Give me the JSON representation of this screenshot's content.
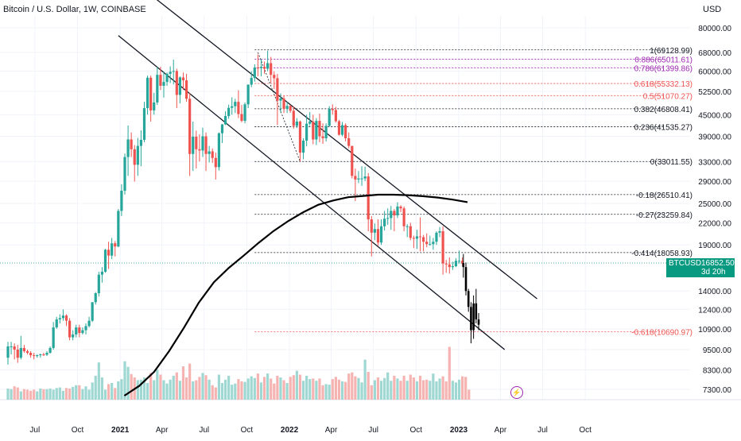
{
  "title": "Bitcoin / U.S. Dollar, 1W, COINBASE",
  "currency": "USD",
  "price_tag": {
    "symbol": "BTCUSD",
    "price": "16852.50",
    "countdown": "3d 20h"
  },
  "icons": {
    "alert": "lightning-icon"
  },
  "colors": {
    "up": "#26a69a",
    "down": "#ef5350",
    "vol_up": "#9fd8d2",
    "vol_down": "#f5b3b1",
    "fib_purple": "#9c27b0",
    "ma_line": "#000000",
    "price_line": "#089981"
  },
  "chart_data": {
    "type": "candlestick",
    "y_scale": "log",
    "ylim": [
      6800,
      85000
    ],
    "y_ticks": [
      "80000.00",
      "68000.00",
      "60000.00",
      "52500.00",
      "45000.00",
      "39000.00",
      "33000.00",
      "29000.00",
      "25000.00",
      "22000.00",
      "19000.00",
      "16852.50",
      "14000.00",
      "12400.00",
      "10900.00",
      "9500.00",
      "8300.00",
      "7300.00"
    ],
    "x_ticks": [
      "Jul",
      "Oct",
      "2021",
      "Apr",
      "Jul",
      "Oct",
      "2022",
      "Apr",
      "Jul",
      "Oct",
      "2023",
      "Apr",
      "Jul",
      "Oct"
    ],
    "start": "2020-05-04",
    "interval_weeks": 1,
    "ohlc": [
      [
        9000,
        10000,
        8600,
        9700
      ],
      [
        9700,
        10000,
        9200,
        9700
      ],
      [
        9700,
        9900,
        8900,
        9500
      ],
      [
        9500,
        9800,
        8700,
        9000
      ],
      [
        9000,
        10400,
        8900,
        9600
      ],
      [
        9600,
        9800,
        9300,
        9400
      ],
      [
        9400,
        9500,
        9200,
        9300
      ],
      [
        9300,
        9400,
        9000,
        9150
      ],
      [
        9150,
        9300,
        8900,
        9100
      ],
      [
        9100,
        9200,
        9000,
        9150
      ],
      [
        9150,
        9250,
        9000,
        9200
      ],
      [
        9200,
        9300,
        9100,
        9180
      ],
      [
        9180,
        9400,
        9100,
        9300
      ],
      [
        9300,
        9700,
        9250,
        9600
      ],
      [
        9600,
        11400,
        9500,
        11000
      ],
      [
        11000,
        11800,
        10900,
        11600
      ],
      [
        11600,
        12000,
        11300,
        11700
      ],
      [
        11700,
        12400,
        11500,
        11900
      ],
      [
        11900,
        12000,
        11100,
        11500
      ],
      [
        11500,
        11700,
        10100,
        10300
      ],
      [
        10300,
        10800,
        10100,
        10500
      ],
      [
        10500,
        11200,
        10300,
        11000
      ],
      [
        11000,
        11200,
        10300,
        10600
      ],
      [
        10600,
        11000,
        10500,
        10800
      ],
      [
        10800,
        11300,
        10500,
        11100
      ],
      [
        11100,
        11800,
        11000,
        11500
      ],
      [
        11500,
        13000,
        11400,
        13000
      ],
      [
        13000,
        13900,
        12800,
        13800
      ],
      [
        13800,
        15900,
        13500,
        15600
      ],
      [
        15600,
        16400,
        14800,
        15900
      ],
      [
        15900,
        18500,
        15800,
        18400
      ],
      [
        18400,
        19400,
        16200,
        17700
      ],
      [
        17700,
        19900,
        17300,
        19200
      ],
      [
        19200,
        19500,
        17600,
        18800
      ],
      [
        18800,
        24100,
        18700,
        23800
      ],
      [
        23800,
        28400,
        23000,
        27200
      ],
      [
        27200,
        34800,
        26500,
        34000
      ],
      [
        34000,
        41900,
        30000,
        38200
      ],
      [
        38200,
        40000,
        34000,
        35800
      ],
      [
        35800,
        36800,
        28900,
        32300
      ],
      [
        32300,
        38600,
        30000,
        36600
      ],
      [
        36600,
        40600,
        32000,
        38100
      ],
      [
        38100,
        49000,
        37500,
        47000
      ],
      [
        47000,
        58300,
        45000,
        57500
      ],
      [
        57500,
        58300,
        43000,
        46300
      ],
      [
        46300,
        52000,
        45000,
        48800
      ],
      [
        48800,
        61800,
        48000,
        58600
      ],
      [
        58600,
        61800,
        53000,
        54500
      ],
      [
        54500,
        60000,
        50400,
        55900
      ],
      [
        55900,
        59500,
        54500,
        59000
      ],
      [
        59000,
        62000,
        55500,
        59800
      ],
      [
        59800,
        64800,
        55000,
        60100
      ],
      [
        60100,
        61000,
        47000,
        51300
      ],
      [
        51300,
        58000,
        48500,
        57600
      ],
      [
        57600,
        59500,
        53000,
        56500
      ],
      [
        56500,
        59000,
        49000,
        50000
      ],
      [
        50000,
        52000,
        30000,
        34700
      ],
      [
        34700,
        43000,
        31000,
        38900
      ],
      [
        38900,
        40500,
        31500,
        35800
      ],
      [
        35800,
        39500,
        33000,
        35500
      ],
      [
        35500,
        41300,
        34000,
        39000
      ],
      [
        39000,
        40000,
        31000,
        34700
      ],
      [
        34700,
        36600,
        32800,
        35300
      ],
      [
        35300,
        36000,
        32700,
        33800
      ],
      [
        33800,
        35000,
        29300,
        31800
      ],
      [
        31800,
        40000,
        31100,
        39800
      ],
      [
        39800,
        42300,
        37300,
        42200
      ],
      [
        42200,
        46000,
        42000,
        44600
      ],
      [
        44600,
        48100,
        43800,
        47100
      ],
      [
        47100,
        50500,
        45000,
        47600
      ],
      [
        47600,
        50000,
        45500,
        49000
      ],
      [
        49000,
        52900,
        44000,
        45200
      ],
      [
        45200,
        48000,
        42800,
        43200
      ],
      [
        43200,
        48800,
        42500,
        48200
      ],
      [
        48200,
        55000,
        47000,
        54900
      ],
      [
        54900,
        60000,
        54000,
        57400
      ],
      [
        57400,
        62800,
        56000,
        61500
      ],
      [
        61500,
        67000,
        58000,
        61300
      ],
      [
        61300,
        65000,
        58000,
        61800
      ],
      [
        61800,
        64000,
        59000,
        61000
      ],
      [
        61000,
        68800,
        60000,
        63300
      ],
      [
        63300,
        66000,
        55600,
        58600
      ],
      [
        58600,
        60000,
        53300,
        57300
      ],
      [
        57300,
        59000,
        42000,
        49400
      ],
      [
        49400,
        51800,
        45700,
        50100
      ],
      [
        50100,
        51000,
        45500,
        46800
      ],
      [
        46800,
        49000,
        45500,
        47700
      ],
      [
        47700,
        48000,
        45600,
        46200
      ],
      [
        46200,
        47500,
        41000,
        41800
      ],
      [
        41800,
        44000,
        41200,
        43000
      ],
      [
        43000,
        43300,
        33000,
        35000
      ],
      [
        35000,
        38500,
        33500,
        37900
      ],
      [
        37900,
        45000,
        36500,
        42400
      ],
      [
        42400,
        45800,
        41800,
        43000
      ],
      [
        43000,
        45000,
        37000,
        38200
      ],
      [
        38200,
        44000,
        36800,
        43200
      ],
      [
        43200,
        45300,
        37500,
        39000
      ],
      [
        39000,
        42500,
        37100,
        38500
      ],
      [
        38500,
        42500,
        37700,
        41800
      ],
      [
        41800,
        47600,
        41600,
        46800
      ],
      [
        46800,
        48200,
        45000,
        46400
      ],
      [
        46400,
        47400,
        42700,
        43100
      ],
      [
        43100,
        43500,
        39200,
        39400
      ],
      [
        39400,
        42900,
        39000,
        42000
      ],
      [
        42000,
        42500,
        37700,
        38500
      ],
      [
        38500,
        40000,
        36000,
        36600
      ],
      [
        36600,
        36600,
        29500,
        30000
      ],
      [
        30000,
        31500,
        25400,
        29300
      ],
      [
        29300,
        31000,
        28600,
        29500
      ],
      [
        29500,
        32000,
        28100,
        29500
      ],
      [
        29500,
        31900,
        29000,
        29900
      ],
      [
        29900,
        30600,
        20800,
        22500
      ],
      [
        22500,
        23000,
        17600,
        20600
      ],
      [
        20600,
        21900,
        19600,
        21100
      ],
      [
        21100,
        22500,
        18900,
        19300
      ],
      [
        19300,
        22500,
        19000,
        21500
      ],
      [
        21500,
        23800,
        20900,
        22600
      ],
      [
        22600,
        24200,
        21700,
        22700
      ],
      [
        22700,
        24600,
        21000,
        23800
      ],
      [
        23800,
        24100,
        20800,
        23100
      ],
      [
        23100,
        25200,
        22700,
        24500
      ],
      [
        24500,
        24700,
        23600,
        24200
      ],
      [
        24200,
        24500,
        20800,
        21500
      ],
      [
        21500,
        21800,
        20000,
        21500
      ],
      [
        21500,
        22000,
        19600,
        19900
      ],
      [
        19900,
        20200,
        18600,
        19800
      ],
      [
        19800,
        21000,
        18500,
        20100
      ],
      [
        20100,
        22800,
        18200,
        20000
      ],
      [
        20000,
        20300,
        18200,
        19400
      ],
      [
        19400,
        20500,
        18700,
        19100
      ],
      [
        19100,
        20200,
        18900,
        19100
      ],
      [
        19100,
        19900,
        18400,
        19400
      ],
      [
        19400,
        20800,
        19000,
        20600
      ],
      [
        20600,
        21400,
        20000,
        20800
      ],
      [
        20800,
        21500,
        15600,
        16800
      ],
      [
        16800,
        17200,
        15800,
        16700
      ],
      [
        16700,
        17500,
        15700,
        16400
      ],
      [
        16400,
        17000,
        16100,
        16500
      ],
      [
        16500,
        17400,
        16400,
        17100
      ],
      [
        17100,
        18300,
        16800,
        17100
      ],
      [
        17100,
        17500,
        16500,
        16800
      ]
    ],
    "volume": [
      2.0,
      1.9,
      2.4,
      2.2,
      1.5,
      1.9,
      1.8,
      1.6,
      1.8,
      1.5,
      2.0,
      1.9,
      1.9,
      2.0,
      1.8,
      2.1,
      2.2,
      1.6,
      2.1,
      2.0,
      2.3,
      2.6,
      2.6,
      1.9,
      2.4,
      1.8,
      3.1,
      4.3,
      6.7,
      4.0,
      1.8,
      2.8,
      3.0,
      2.1,
      3.3,
      3.7,
      6.9,
      5.9,
      4.6,
      4.0,
      3.5,
      3.6,
      4.0,
      3.0,
      4.8,
      3.5,
      5.4,
      4.5,
      3.5,
      2.9,
      3.6,
      4.3,
      4.9,
      3.4,
      6.0,
      4.0,
      6.5,
      3.3,
      3.5,
      4.1,
      4.8,
      4.4,
      3.6,
      2.6,
      2.2,
      4.5,
      3.0,
      3.6,
      4.3,
      2.7,
      2.9,
      3.7,
      3.3,
      3.2,
      3.8,
      4.2,
      3.9,
      4.7,
      3.1,
      4.1,
      4.7,
      3.8,
      2.9,
      4.3,
      4.0,
      3.5,
      3.0,
      4.1,
      4.4,
      5.2,
      4.5,
      3.4,
      4.3,
      3.7,
      3.8,
      3.4,
      3.8,
      2.6,
      2.8,
      2.7,
      3.7,
      4.1,
      3.6,
      3.3,
      3.2,
      4.7,
      4.9,
      4.2,
      3.9,
      3.1,
      7.2,
      5.0,
      2.6,
      3.5,
      4.0,
      3.4,
      3.9,
      4.9,
      3.4,
      4.3,
      3.8,
      3.4,
      4.3,
      3.4,
      4.5,
      4.0,
      3.3,
      4.3,
      3.5,
      3.6,
      3.4,
      4.7,
      3.3,
      3.8,
      4.2,
      3.3,
      9.5,
      3.4,
      3.1,
      3.6,
      4.2,
      4.1,
      1.8
    ],
    "moving_average": [
      [
        6930,
        7000
      ],
      [
        7780,
        7470
      ],
      [
        8770,
        8200
      ],
      [
        9760,
        9400
      ],
      [
        10900,
        10990
      ],
      [
        12040,
        12980
      ],
      [
        13140,
        14840
      ],
      [
        14330,
        16320
      ],
      [
        15460,
        17700
      ],
      [
        16600,
        19260
      ],
      [
        17780,
        20830
      ],
      [
        18900,
        22270
      ],
      [
        20080,
        23600
      ],
      [
        21300,
        24780
      ],
      [
        22440,
        25500
      ],
      [
        23700,
        26050
      ],
      [
        24850,
        26270
      ],
      [
        26050,
        26500
      ],
      [
        27200,
        26500
      ],
      [
        28350,
        26410
      ],
      [
        29580,
        26230
      ],
      [
        30760,
        26000
      ],
      [
        31940,
        25650
      ],
      [
        33100,
        25220
      ]
    ],
    "fib_levels": [
      {
        "label": "1(69128.99)",
        "value": 69128.99,
        "color": "#131722"
      },
      {
        "label": "0.886(65011.61)",
        "value": 65011.61,
        "color": "#9c27b0"
      },
      {
        "label": "0.786(61399.86)",
        "value": 61399.86,
        "color": "#9c27b0"
      },
      {
        "label": "0.618(55332.13)",
        "value": 55332.13,
        "color": "#ef5350"
      },
      {
        "label": "0.5(51070.27)",
        "value": 51070.27,
        "color": "#ef5350"
      },
      {
        "label": "0.382(46808.41)",
        "value": 46808.41,
        "color": "#131722"
      },
      {
        "label": "0.236(41535.27)",
        "value": 41535.27,
        "color": "#131722"
      },
      {
        "label": "0(33011.55)",
        "value": 33011.55,
        "color": "#131722"
      },
      {
        "label": "-0.18(26510.41)",
        "value": 26510.41,
        "color": "#131722"
      },
      {
        "label": "-0.27(23259.84)",
        "value": 23259.84,
        "color": "#131722"
      },
      {
        "label": "-0.414(18058.93)",
        "value": 18058.93,
        "color": "#131722"
      },
      {
        "label": "-0.618(10690.97)",
        "value": 10690.97,
        "color": "#ef5350"
      }
    ],
    "fib_start": "2021-10-18",
    "trendlines": [
      {
        "name": "channel-upper",
        "from": [
          "2021-01-18",
          112000
        ],
        "to": [
          "2023-06-19",
          13300
        ]
      },
      {
        "name": "channel-lower",
        "from": [
          "2020-12-28",
          76000
        ],
        "to": [
          "2023-04-10",
          9500
        ]
      },
      {
        "name": "fib-anchor",
        "from": [
          "2021-10-25",
          68000
        ],
        "to": [
          "2022-01-24",
          33000
        ],
        "dashed": true
      }
    ],
    "projection": [
      [
        16850,
        17900,
        15300,
        16400
      ],
      [
        16400,
        16900,
        13600,
        14000
      ],
      [
        14000,
        14200,
        12200,
        12600
      ],
      [
        12600,
        13000,
        9900,
        10800
      ],
      [
        10800,
        13600,
        10200,
        12900
      ],
      [
        12900,
        14200,
        11300,
        11600
      ],
      [
        11600,
        12100,
        10800,
        11200
      ]
    ],
    "hlines": [
      {
        "name": "current-price",
        "value": 16852.5
      }
    ]
  }
}
